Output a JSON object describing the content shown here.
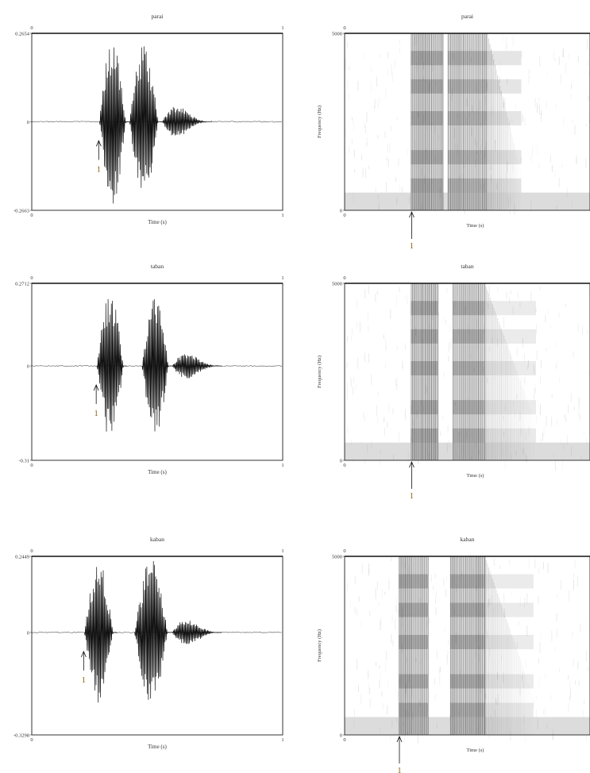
{
  "charts": [
    {
      "id": "wave-parai",
      "chart_data": {
        "type": "line",
        "title": "parai",
        "xlabel": "Time (s)",
        "x_ticks": [
          "0",
          "1"
        ],
        "ylim": [
          -0.2663,
          0.2654
        ],
        "y_ticks": [
          "0.2654",
          "0",
          "-0.2663"
        ],
        "onset": 0.27,
        "bursts": [
          {
            "start": 0.27,
            "end": 0.39,
            "peak": 0.25
          },
          {
            "start": 0.39,
            "end": 0.52,
            "peak": 0.23
          },
          {
            "start": 0.52,
            "end": 0.72,
            "peak": 0.09
          }
        ]
      },
      "marker_label": "1"
    },
    {
      "id": "spec-parai",
      "chart_data": {
        "type": "heatmap",
        "title": "parai",
        "xlabel": "Time (s)",
        "ylabel": "Frequency (Hz)",
        "ylim": [
          0,
          5000
        ],
        "y_ticks": [
          "5000",
          "0"
        ],
        "x_ticks": [
          "0"
        ],
        "onset": 0.27,
        "voiced_segments": [
          {
            "start": 0.27,
            "end": 0.4,
            "darkness": 0.85
          },
          {
            "start": 0.42,
            "end": 0.58,
            "darkness": 0.75
          },
          {
            "start": 0.58,
            "end": 0.72,
            "darkness": 0.45
          }
        ]
      },
      "marker_label": "1"
    },
    {
      "id": "wave-taban",
      "chart_data": {
        "type": "line",
        "title": "taban",
        "xlabel": "Time (s)",
        "x_ticks": [
          "0",
          "1"
        ],
        "ylim": [
          -0.31,
          0.2712
        ],
        "y_ticks": [
          "0.2712",
          "0",
          "-0.31"
        ],
        "onset": 0.26,
        "bursts": [
          {
            "start": 0.26,
            "end": 0.38,
            "peak": 0.25
          },
          {
            "start": 0.44,
            "end": 0.56,
            "peak": 0.23
          },
          {
            "start": 0.56,
            "end": 0.76,
            "peak": 0.08
          }
        ]
      },
      "marker_label": "1"
    },
    {
      "id": "spec-taban",
      "chart_data": {
        "type": "heatmap",
        "title": "taban",
        "xlabel": "Time (s)",
        "ylabel": "Frequency (Hz)",
        "ylim": [
          0,
          5000
        ],
        "y_ticks": [
          "5000",
          "0"
        ],
        "x_ticks": [
          "0"
        ],
        "onset": 0.27,
        "voiced_segments": [
          {
            "start": 0.27,
            "end": 0.38,
            "darkness": 0.85
          },
          {
            "start": 0.44,
            "end": 0.57,
            "darkness": 0.8
          },
          {
            "start": 0.57,
            "end": 0.78,
            "darkness": 0.35
          }
        ]
      },
      "marker_label": "1"
    },
    {
      "id": "wave-kaban",
      "chart_data": {
        "type": "line",
        "title": "kaban",
        "xlabel": "Time (s)",
        "x_ticks": [
          "0",
          "1"
        ],
        "ylim": [
          -0.3298,
          0.2449
        ],
        "y_ticks": [
          "0.2449",
          "0",
          "-0.3298"
        ],
        "onset": 0.21,
        "bursts": [
          {
            "start": 0.21,
            "end": 0.34,
            "peak": 0.23
          },
          {
            "start": 0.41,
            "end": 0.56,
            "peak": 0.24
          },
          {
            "start": 0.56,
            "end": 0.76,
            "peak": 0.08
          }
        ]
      },
      "marker_label": "1"
    },
    {
      "id": "spec-kaban",
      "chart_data": {
        "type": "heatmap",
        "title": "kaban",
        "xlabel": "Time (s)",
        "ylabel": "Frequency (Hz)",
        "ylim": [
          0,
          5000
        ],
        "y_ticks": [
          "5000",
          "0"
        ],
        "x_ticks": [
          "0"
        ],
        "onset": 0.22,
        "voiced_segments": [
          {
            "start": 0.22,
            "end": 0.34,
            "darkness": 0.85
          },
          {
            "start": 0.43,
            "end": 0.57,
            "darkness": 0.85
          },
          {
            "start": 0.57,
            "end": 0.77,
            "darkness": 0.35
          }
        ]
      },
      "marker_label": "1"
    }
  ]
}
